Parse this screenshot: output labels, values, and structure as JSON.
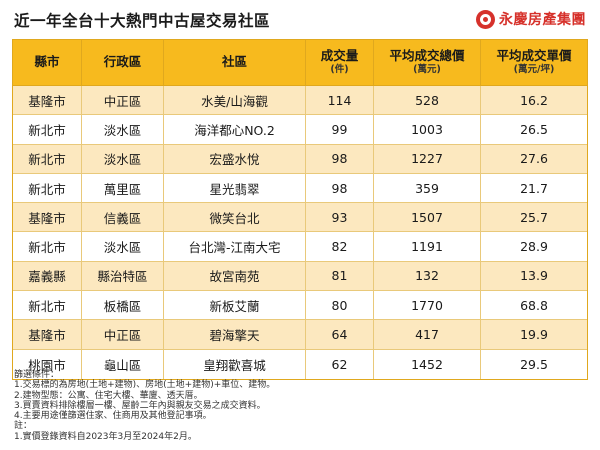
{
  "header": {
    "title": "近一年全台十大熱門中古屋交易社區",
    "brand": "永慶房產集團"
  },
  "table": {
    "columns": [
      {
        "label": "縣市",
        "unit": ""
      },
      {
        "label": "行政區",
        "unit": ""
      },
      {
        "label": "社區",
        "unit": ""
      },
      {
        "label": "成交量",
        "unit": "(件)"
      },
      {
        "label": "平均成交總價",
        "unit": "(萬元)"
      },
      {
        "label": "平均成交單價",
        "unit": "(萬元/坪)"
      }
    ],
    "rows": [
      [
        "基隆市",
        "中正區",
        "水美/山海觀",
        "114",
        "528",
        "16.2"
      ],
      [
        "新北市",
        "淡水區",
        "海洋都心NO.2",
        "99",
        "1003",
        "26.5"
      ],
      [
        "新北市",
        "淡水區",
        "宏盛水悅",
        "98",
        "1227",
        "27.6"
      ],
      [
        "新北市",
        "萬里區",
        "星光翡翠",
        "98",
        "359",
        "21.7"
      ],
      [
        "基隆市",
        "信義區",
        "微笑台北",
        "93",
        "1507",
        "25.7"
      ],
      [
        "新北市",
        "淡水區",
        "台北灣-江南大宅",
        "82",
        "1191",
        "28.9"
      ],
      [
        "嘉義縣",
        "縣治特區",
        "故宮南苑",
        "81",
        "132",
        "13.9"
      ],
      [
        "新北市",
        "板橋區",
        "新板艾蘭",
        "80",
        "1770",
        "68.8"
      ],
      [
        "基隆市",
        "中正區",
        "碧海擎天",
        "64",
        "417",
        "19.9"
      ],
      [
        "桃園市",
        "龜山區",
        "皇翔歡喜城",
        "62",
        "1452",
        "29.5"
      ]
    ]
  },
  "notes": [
    "篩選條件：",
    "1.交易標的為房地(土地+建物)、房地(土地+建物)+車位、建物。",
    "2.建物型態：公寓、住宅大樓、華廈、透天厝。",
    "3.買賣資料排除樓層一樓、屋齡二年內與親友交易之成交資料。",
    "4.主要用途僅篩選住家、住商用及其他登記事項。",
    "註：",
    "1.實價登錄資料自2023年3月至2024年2月。"
  ]
}
